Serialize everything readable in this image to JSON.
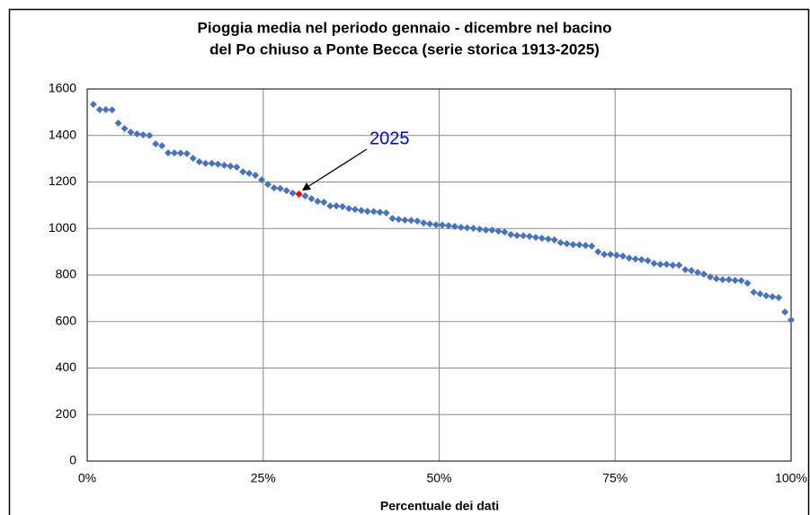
{
  "chart_data": {
    "type": "scatter",
    "title": [
      "Pioggia media nel periodo gennaio - dicembre nel bacino",
      "del Po chiuso a Ponte Becca (serie storica 1913-2025)"
    ],
    "xlabel": "Percentuale dei dati",
    "xlim": [
      0,
      100
    ],
    "xticks": [
      {
        "value": 0,
        "label": "0%"
      },
      {
        "value": 25,
        "label": "25%"
      },
      {
        "value": 50,
        "label": "50%"
      },
      {
        "value": 75,
        "label": "75%"
      },
      {
        "value": 100,
        "label": "100%"
      }
    ],
    "ylim": [
      0,
      1600
    ],
    "yticks": [
      0,
      200,
      400,
      600,
      800,
      1000,
      1200,
      1400,
      1600
    ],
    "grid": true,
    "series": [
      {
        "color": "#4472c4",
        "x": [
          0.88,
          1.77,
          2.65,
          3.54,
          4.42,
          5.31,
          6.19,
          7.08,
          7.96,
          8.85,
          9.73,
          10.62,
          11.5,
          12.39,
          13.27,
          14.16,
          15.04,
          15.93,
          16.81,
          17.7,
          18.58,
          19.47,
          20.35,
          21.24,
          22.12,
          23.01,
          23.89,
          24.78,
          25.66,
          26.55,
          27.43,
          28.32,
          29.2,
          30.97,
          31.86,
          32.74,
          33.63,
          34.51,
          35.4,
          36.28,
          37.17,
          38.05,
          38.94,
          39.82,
          40.71,
          41.59,
          42.48,
          43.36,
          44.25,
          45.13,
          46.02,
          46.9,
          47.79,
          48.67,
          49.56,
          50.44,
          51.33,
          52.21,
          53.1,
          53.98,
          54.87,
          55.75,
          56.64,
          57.52,
          58.41,
          59.29,
          60.18,
          61.06,
          61.95,
          62.83,
          63.72,
          64.6,
          65.49,
          66.37,
          67.26,
          68.14,
          69.03,
          69.91,
          70.8,
          71.68,
          72.57,
          73.45,
          74.34,
          75.22,
          76.11,
          76.99,
          77.88,
          78.76,
          79.65,
          80.53,
          81.42,
          82.3,
          83.19,
          84.07,
          84.96,
          85.84,
          86.73,
          87.61,
          88.5,
          89.38,
          90.27,
          91.15,
          92.04,
          92.92,
          93.81,
          94.69,
          95.58,
          96.46,
          97.35,
          98.23,
          99.12,
          100
        ],
        "values": [
          1534,
          1511,
          1511,
          1510,
          1453,
          1430,
          1414,
          1407,
          1403,
          1400,
          1364,
          1356,
          1325,
          1325,
          1324,
          1322,
          1302,
          1287,
          1280,
          1280,
          1277,
          1272,
          1268,
          1264,
          1244,
          1237,
          1229,
          1209,
          1190,
          1175,
          1172,
          1163,
          1152,
          1140,
          1128,
          1117,
          1113,
          1097,
          1097,
          1094,
          1086,
          1082,
          1078,
          1074,
          1073,
          1070,
          1067,
          1043,
          1039,
          1036,
          1035,
          1032,
          1024,
          1020,
          1016,
          1015,
          1012,
          1009,
          1005,
          1003,
          1001,
          997,
          993,
          993,
          989,
          985,
          974,
          970,
          969,
          966,
          962,
          958,
          955,
          951,
          939,
          935,
          931,
          930,
          927,
          924,
          900,
          889,
          889,
          885,
          881,
          873,
          869,
          866,
          862,
          850,
          846,
          846,
          842,
          842,
          823,
          819,
          811,
          804,
          792,
          784,
          780,
          780,
          777,
          776,
          765,
          726,
          719,
          711,
          707,
          703,
          641,
          607
        ]
      },
      {
        "color": "#ff0000",
        "x": [
          30.09
        ],
        "values": [
          1148
        ]
      }
    ],
    "annotation": "2025"
  }
}
